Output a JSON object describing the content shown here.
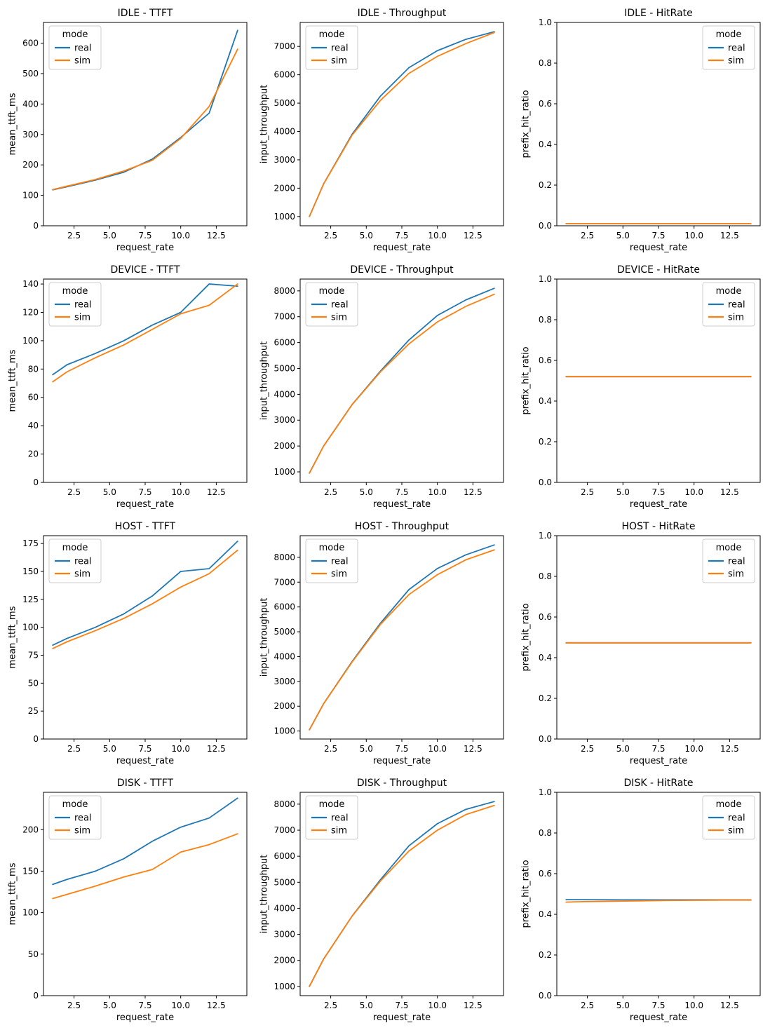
{
  "layout": {
    "rows": 4,
    "cols": 3,
    "row_groups": [
      "IDLE",
      "DEVICE",
      "HOST",
      "DISK"
    ],
    "col_metrics": [
      "TTFT",
      "Throughput",
      "HitRate"
    ]
  },
  "colors": {
    "real": "#1f77b4",
    "sim": "#ff7f0e"
  },
  "legend": {
    "title": "mode",
    "entries": [
      "real",
      "sim"
    ]
  },
  "chart_data": [
    {
      "id": "idle-ttft",
      "type": "line",
      "title": "IDLE - TTFT",
      "xlabel": "request_rate",
      "ylabel": "mean_ttft_ms",
      "x": [
        1,
        2,
        4,
        6,
        8,
        10,
        12,
        14
      ],
      "series": [
        {
          "name": "real",
          "values": [
            118,
            128,
            150,
            176,
            219,
            290,
            370,
            642
          ]
        },
        {
          "name": "sim",
          "values": [
            119,
            130,
            152,
            180,
            215,
            287,
            392,
            580
          ]
        }
      ],
      "xlim": [
        0.35,
        14.65
      ],
      "ylim": [
        0,
        668
      ],
      "xticks": [
        2.5,
        5.0,
        7.5,
        10.0,
        12.5
      ],
      "xtick_labels": [
        "2.5",
        "5.0",
        "7.5",
        "10.0",
        "12.5"
      ],
      "yticks": [
        0,
        100,
        200,
        300,
        400,
        500,
        600
      ],
      "ytick_labels": [
        "0",
        "100",
        "200",
        "300",
        "400",
        "500",
        "600"
      ],
      "grid": false,
      "legend_pos": "upper-left"
    },
    {
      "id": "idle-throughput",
      "type": "line",
      "title": "IDLE - Throughput",
      "xlabel": "request_rate",
      "ylabel": "input_throughput",
      "x": [
        1,
        2,
        4,
        6,
        8,
        10,
        12,
        14
      ],
      "series": [
        {
          "name": "real",
          "values": [
            1000,
            2150,
            3900,
            5250,
            6250,
            6850,
            7250,
            7520
          ]
        },
        {
          "name": "sim",
          "values": [
            1000,
            2150,
            3870,
            5100,
            6050,
            6650,
            7100,
            7490
          ]
        }
      ],
      "xlim": [
        0.35,
        14.65
      ],
      "ylim": [
        674,
        7846
      ],
      "xticks": [
        2.5,
        5.0,
        7.5,
        10.0,
        12.5
      ],
      "xtick_labels": [
        "2.5",
        "5.0",
        "7.5",
        "10.0",
        "12.5"
      ],
      "yticks": [
        1000,
        2000,
        3000,
        4000,
        5000,
        6000,
        7000
      ],
      "ytick_labels": [
        "1000",
        "2000",
        "3000",
        "4000",
        "5000",
        "6000",
        "7000"
      ],
      "grid": false,
      "legend_pos": "upper-left"
    },
    {
      "id": "idle-hitrate",
      "type": "line",
      "title": "IDLE - HitRate",
      "xlabel": "request_rate",
      "ylabel": "prefix_hit_ratio",
      "x": [
        1,
        2,
        4,
        6,
        8,
        10,
        12,
        14
      ],
      "series": [
        {
          "name": "real",
          "values": [
            0.01,
            0.01,
            0.01,
            0.01,
            0.01,
            0.01,
            0.01,
            0.01
          ]
        },
        {
          "name": "sim",
          "values": [
            0.01,
            0.01,
            0.01,
            0.01,
            0.01,
            0.01,
            0.01,
            0.01
          ]
        }
      ],
      "xlim": [
        0.35,
        14.65
      ],
      "ylim": [
        0,
        1
      ],
      "xticks": [
        2.5,
        5.0,
        7.5,
        10.0,
        12.5
      ],
      "xtick_labels": [
        "2.5",
        "5.0",
        "7.5",
        "10.0",
        "12.5"
      ],
      "yticks": [
        0.0,
        0.2,
        0.4,
        0.6,
        0.8,
        1.0
      ],
      "ytick_labels": [
        "0.0",
        "0.2",
        "0.4",
        "0.6",
        "0.8",
        "1.0"
      ],
      "grid": false,
      "legend_pos": "upper-right"
    },
    {
      "id": "device-ttft",
      "type": "line",
      "title": "DEVICE - TTFT",
      "xlabel": "request_rate",
      "ylabel": "mean_ttft_ms",
      "x": [
        1,
        2,
        4,
        6,
        8,
        10,
        12,
        14
      ],
      "series": [
        {
          "name": "real",
          "values": [
            76,
            83,
            91,
            100,
            111,
            120,
            140,
            138.5
          ]
        },
        {
          "name": "sim",
          "values": [
            71,
            78,
            88,
            97,
            108,
            119,
            125,
            140
          ]
        }
      ],
      "xlim": [
        0.35,
        14.65
      ],
      "ylim": [
        0,
        143.5
      ],
      "xticks": [
        2.5,
        5.0,
        7.5,
        10.0,
        12.5
      ],
      "xtick_labels": [
        "2.5",
        "5.0",
        "7.5",
        "10.0",
        "12.5"
      ],
      "yticks": [
        0,
        20,
        40,
        60,
        80,
        100,
        120,
        140
      ],
      "ytick_labels": [
        "0",
        "20",
        "40",
        "60",
        "80",
        "100",
        "120",
        "140"
      ],
      "grid": false,
      "legend_pos": "upper-left"
    },
    {
      "id": "device-throughput",
      "type": "line",
      "title": "DEVICE - Throughput",
      "xlabel": "request_rate",
      "ylabel": "input_throughput",
      "x": [
        1,
        2,
        4,
        6,
        8,
        10,
        12,
        14
      ],
      "series": [
        {
          "name": "real",
          "values": [
            950,
            2000,
            3600,
            4900,
            6100,
            7050,
            7650,
            8100
          ]
        },
        {
          "name": "sim",
          "values": [
            950,
            2000,
            3600,
            4870,
            5950,
            6800,
            7400,
            7870
          ]
        }
      ],
      "xlim": [
        0.35,
        14.65
      ],
      "ylim": [
        593,
        8457
      ],
      "xticks": [
        2.5,
        5.0,
        7.5,
        10.0,
        12.5
      ],
      "xtick_labels": [
        "2.5",
        "5.0",
        "7.5",
        "10.0",
        "12.5"
      ],
      "yticks": [
        1000,
        2000,
        3000,
        4000,
        5000,
        6000,
        7000,
        8000
      ],
      "ytick_labels": [
        "1000",
        "2000",
        "3000",
        "4000",
        "5000",
        "6000",
        "7000",
        "8000"
      ],
      "grid": false,
      "legend_pos": "upper-left"
    },
    {
      "id": "device-hitrate",
      "type": "line",
      "title": "DEVICE - HitRate",
      "xlabel": "request_rate",
      "ylabel": "prefix_hit_ratio",
      "x": [
        1,
        2,
        4,
        6,
        8,
        10,
        12,
        14
      ],
      "series": [
        {
          "name": "real",
          "values": [
            0.52,
            0.52,
            0.52,
            0.52,
            0.52,
            0.52,
            0.52,
            0.52
          ]
        },
        {
          "name": "sim",
          "values": [
            0.52,
            0.52,
            0.52,
            0.52,
            0.52,
            0.52,
            0.52,
            0.52
          ]
        }
      ],
      "xlim": [
        0.35,
        14.65
      ],
      "ylim": [
        0,
        1
      ],
      "xticks": [
        2.5,
        5.0,
        7.5,
        10.0,
        12.5
      ],
      "xtick_labels": [
        "2.5",
        "5.0",
        "7.5",
        "10.0",
        "12.5"
      ],
      "yticks": [
        0.0,
        0.2,
        0.4,
        0.6,
        0.8,
        1.0
      ],
      "ytick_labels": [
        "0.0",
        "0.2",
        "0.4",
        "0.6",
        "0.8",
        "1.0"
      ],
      "grid": false,
      "legend_pos": "upper-right"
    },
    {
      "id": "host-ttft",
      "type": "line",
      "title": "HOST - TTFT",
      "xlabel": "request_rate",
      "ylabel": "mean_ttft_ms",
      "x": [
        1,
        2,
        4,
        6,
        8,
        10,
        12,
        14
      ],
      "series": [
        {
          "name": "real",
          "values": [
            84,
            90,
            100,
            112,
            128,
            150,
            152.5,
            177
          ]
        },
        {
          "name": "sim",
          "values": [
            81,
            87,
            97,
            108,
            121,
            136,
            148,
            169
          ]
        }
      ],
      "xlim": [
        0.35,
        14.65
      ],
      "ylim": [
        0,
        182
      ],
      "xticks": [
        2.5,
        5.0,
        7.5,
        10.0,
        12.5
      ],
      "xtick_labels": [
        "2.5",
        "5.0",
        "7.5",
        "10.0",
        "12.5"
      ],
      "yticks": [
        0,
        25,
        50,
        75,
        100,
        125,
        150,
        175
      ],
      "ytick_labels": [
        "0",
        "25",
        "50",
        "75",
        "100",
        "125",
        "150",
        "175"
      ],
      "grid": false,
      "legend_pos": "upper-left"
    },
    {
      "id": "host-throughput",
      "type": "line",
      "title": "HOST - Throughput",
      "xlabel": "request_rate",
      "ylabel": "input_throughput",
      "x": [
        1,
        2,
        4,
        6,
        8,
        10,
        12,
        14
      ],
      "series": [
        {
          "name": "real",
          "values": [
            1050,
            2100,
            3800,
            5350,
            6700,
            7550,
            8100,
            8500
          ]
        },
        {
          "name": "sim",
          "values": [
            1050,
            2100,
            3780,
            5300,
            6500,
            7300,
            7900,
            8300
          ]
        }
      ],
      "xlim": [
        0.35,
        14.65
      ],
      "ylim": [
        678,
        8872
      ],
      "xticks": [
        2.5,
        5.0,
        7.5,
        10.0,
        12.5
      ],
      "xtick_labels": [
        "2.5",
        "5.0",
        "7.5",
        "10.0",
        "12.5"
      ],
      "yticks": [
        1000,
        2000,
        3000,
        4000,
        5000,
        6000,
        7000,
        8000
      ],
      "ytick_labels": [
        "1000",
        "2000",
        "3000",
        "4000",
        "5000",
        "6000",
        "7000",
        "8000"
      ],
      "grid": false,
      "legend_pos": "upper-left"
    },
    {
      "id": "host-hitrate",
      "type": "line",
      "title": "HOST - HitRate",
      "xlabel": "request_rate",
      "ylabel": "prefix_hit_ratio",
      "x": [
        1,
        2,
        4,
        6,
        8,
        10,
        12,
        14
      ],
      "series": [
        {
          "name": "real",
          "values": [
            0.473,
            0.473,
            0.473,
            0.473,
            0.473,
            0.473,
            0.473,
            0.473
          ]
        },
        {
          "name": "sim",
          "values": [
            0.473,
            0.473,
            0.473,
            0.473,
            0.473,
            0.473,
            0.473,
            0.473
          ]
        }
      ],
      "xlim": [
        0.35,
        14.65
      ],
      "ylim": [
        0,
        1
      ],
      "xticks": [
        2.5,
        5.0,
        7.5,
        10.0,
        12.5
      ],
      "xtick_labels": [
        "2.5",
        "5.0",
        "7.5",
        "10.0",
        "12.5"
      ],
      "yticks": [
        0.0,
        0.2,
        0.4,
        0.6,
        0.8,
        1.0
      ],
      "ytick_labels": [
        "0.0",
        "0.2",
        "0.4",
        "0.6",
        "0.8",
        "1.0"
      ],
      "grid": false,
      "legend_pos": "upper-right"
    },
    {
      "id": "disk-ttft",
      "type": "line",
      "title": "DISK - TTFT",
      "xlabel": "request_rate",
      "ylabel": "mean_ttft_ms",
      "x": [
        1,
        2,
        4,
        6,
        8,
        10,
        12,
        14
      ],
      "series": [
        {
          "name": "real",
          "values": [
            134,
            140,
            150,
            165,
            186,
            203,
            214,
            238
          ]
        },
        {
          "name": "sim",
          "values": [
            117,
            122,
            132,
            143,
            152,
            173,
            182,
            195
          ]
        }
      ],
      "xlim": [
        0.35,
        14.65
      ],
      "ylim": [
        0,
        245
      ],
      "xticks": [
        2.5,
        5.0,
        7.5,
        10.0,
        12.5
      ],
      "xtick_labels": [
        "2.5",
        "5.0",
        "7.5",
        "10.0",
        "12.5"
      ],
      "yticks": [
        0,
        50,
        100,
        150,
        200
      ],
      "ytick_labels": [
        "0",
        "50",
        "100",
        "150",
        "200"
      ],
      "grid": false,
      "legend_pos": "upper-left"
    },
    {
      "id": "disk-throughput",
      "type": "line",
      "title": "DISK - Throughput",
      "xlabel": "request_rate",
      "ylabel": "input_throughput",
      "x": [
        1,
        2,
        4,
        6,
        8,
        10,
        12,
        14
      ],
      "series": [
        {
          "name": "real",
          "values": [
            1000,
            2050,
            3700,
            5100,
            6400,
            7250,
            7800,
            8100
          ]
        },
        {
          "name": "sim",
          "values": [
            1000,
            2050,
            3700,
            5050,
            6200,
            7000,
            7600,
            7950
          ]
        }
      ],
      "xlim": [
        0.35,
        14.65
      ],
      "ylim": [
        645,
        8455
      ],
      "xticks": [
        2.5,
        5.0,
        7.5,
        10.0,
        12.5
      ],
      "xtick_labels": [
        "2.5",
        "5.0",
        "7.5",
        "10.0",
        "12.5"
      ],
      "yticks": [
        1000,
        2000,
        3000,
        4000,
        5000,
        6000,
        7000,
        8000
      ],
      "ytick_labels": [
        "1000",
        "2000",
        "3000",
        "4000",
        "5000",
        "6000",
        "7000",
        "8000"
      ],
      "grid": false,
      "legend_pos": "upper-left"
    },
    {
      "id": "disk-hitrate",
      "type": "line",
      "title": "DISK - HitRate",
      "xlabel": "request_rate",
      "ylabel": "prefix_hit_ratio",
      "x": [
        1,
        2,
        4,
        6,
        8,
        10,
        12,
        14
      ],
      "series": [
        {
          "name": "real",
          "values": [
            0.472,
            0.472,
            0.4715,
            0.471,
            0.471,
            0.471,
            0.471,
            0.471
          ]
        },
        {
          "name": "sim",
          "values": [
            0.46,
            0.462,
            0.464,
            0.466,
            0.468,
            0.469,
            0.47,
            0.47
          ]
        }
      ],
      "xlim": [
        0.35,
        14.65
      ],
      "ylim": [
        0,
        1
      ],
      "xticks": [
        2.5,
        5.0,
        7.5,
        10.0,
        12.5
      ],
      "xtick_labels": [
        "2.5",
        "5.0",
        "7.5",
        "10.0",
        "12.5"
      ],
      "yticks": [
        0.0,
        0.2,
        0.4,
        0.6,
        0.8,
        1.0
      ],
      "ytick_labels": [
        "0.0",
        "0.2",
        "0.4",
        "0.6",
        "0.8",
        "1.0"
      ],
      "grid": false,
      "legend_pos": "upper-right"
    }
  ]
}
